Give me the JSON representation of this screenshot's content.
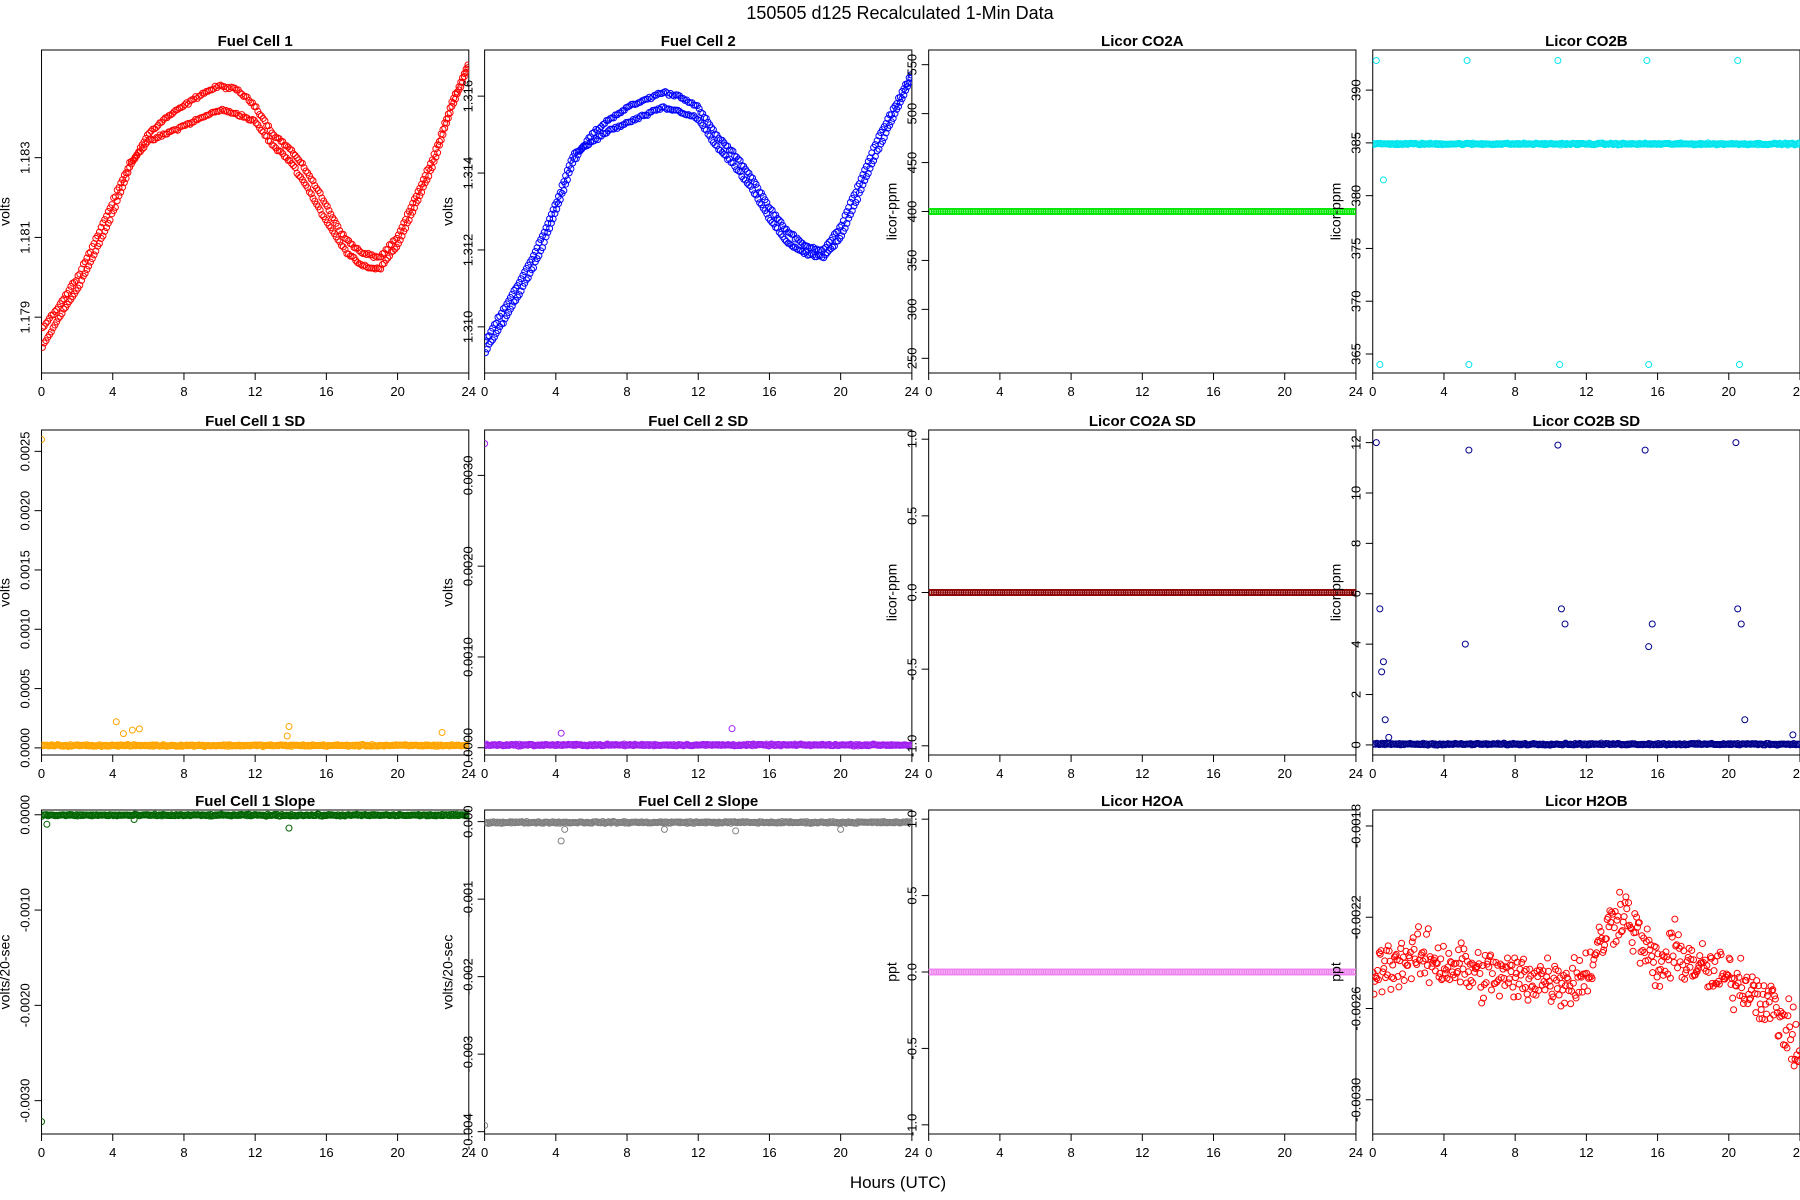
{
  "figure": {
    "title": "150505   d125   Recalculated 1-Min Data",
    "xlabel": "Hours (UTC)"
  },
  "chart_data": [
    {
      "type": "scatter",
      "title": "Fuel Cell 1",
      "ylabel": "volts",
      "color": "#ff0000",
      "xlim": [
        0,
        24
      ],
      "ylim": [
        1.1776,
        1.1857
      ],
      "xticks": [
        0,
        4,
        8,
        12,
        16,
        20,
        24
      ],
      "yticks": [
        1.179,
        1.181,
        1.183
      ],
      "ytick_labels": [
        "1.179",
        "1.181",
        "1.183"
      ],
      "series": [
        {
          "name": "",
          "x": [
            0,
            1,
            2,
            3,
            4,
            5,
            6,
            7,
            8,
            9,
            10,
            11,
            12,
            13,
            14,
            15,
            16,
            17,
            18,
            19,
            20,
            21,
            22,
            23,
            24
          ],
          "y": [
            1.1782,
            1.179,
            1.1797,
            1.1806,
            1.1816,
            1.1828,
            1.1836,
            1.184,
            1.1843,
            1.1846,
            1.1848,
            1.1847,
            1.1843,
            1.1836,
            1.1832,
            1.1826,
            1.1818,
            1.181,
            1.1806,
            1.1805,
            1.181,
            1.182,
            1.183,
            1.1843,
            1.1854
          ]
        },
        {
          "name": "",
          "x": [
            0,
            1,
            2,
            3,
            4,
            5,
            6,
            7,
            8,
            9,
            10,
            11,
            12,
            13,
            14,
            15,
            16,
            17,
            18,
            19,
            20,
            21,
            22,
            23,
            24
          ],
          "y": [
            1.1787,
            1.1793,
            1.18,
            1.1809,
            1.1819,
            1.1829,
            1.1834,
            1.1836,
            1.1838,
            1.184,
            1.1842,
            1.1841,
            1.1839,
            1.1833,
            1.1829,
            1.1822,
            1.1814,
            1.1807,
            1.1803,
            1.1802,
            1.1808,
            1.1818,
            1.1828,
            1.1842,
            1.1853
          ]
        }
      ]
    },
    {
      "type": "scatter",
      "title": "Fuel Cell 2",
      "ylabel": "volts",
      "color": "#0000ff",
      "xlim": [
        0,
        24
      ],
      "ylim": [
        1.3088,
        1.3172
      ],
      "xticks": [
        0,
        4,
        8,
        12,
        16,
        20,
        24
      ],
      "yticks": [
        1.31,
        1.312,
        1.314,
        1.316
      ],
      "ytick_labels": [
        "1.310",
        "1.312",
        "1.314",
        "1.316"
      ],
      "series": [
        {
          "name": "",
          "x": [
            0,
            1,
            2,
            3,
            4,
            5,
            6,
            7,
            8,
            9,
            10,
            11,
            12,
            13,
            14,
            15,
            16,
            17,
            18,
            19,
            20,
            21,
            22,
            23,
            24
          ],
          "y": [
            1.3093,
            1.3101,
            1.3109,
            1.3118,
            1.313,
            1.3143,
            1.315,
            1.3154,
            1.3157,
            1.3159,
            1.3161,
            1.316,
            1.3157,
            1.315,
            1.3145,
            1.3139,
            1.3131,
            1.3125,
            1.3121,
            1.312,
            1.3126,
            1.3137,
            1.3148,
            1.3157,
            1.3166
          ]
        },
        {
          "name": "",
          "x": [
            0,
            1,
            2,
            3,
            4,
            5,
            6,
            7,
            8,
            9,
            10,
            11,
            12,
            13,
            14,
            15,
            16,
            17,
            18,
            19,
            20,
            21,
            22,
            23,
            24
          ],
          "y": [
            1.3096,
            1.3104,
            1.3112,
            1.3121,
            1.3132,
            1.3145,
            1.3148,
            1.3151,
            1.3153,
            1.3155,
            1.3157,
            1.3156,
            1.3154,
            1.3147,
            1.3142,
            1.3136,
            1.3128,
            1.3122,
            1.3119,
            1.3118,
            1.3123,
            1.3134,
            1.3145,
            1.3155,
            1.3165
          ]
        }
      ]
    },
    {
      "type": "scatter",
      "title": "Licor CO2A",
      "ylabel": "licor-ppm",
      "color": "#00e600",
      "xlim": [
        0,
        24
      ],
      "ylim": [
        235,
        565
      ],
      "xticks": [
        0,
        4,
        8,
        12,
        16,
        20,
        24
      ],
      "yticks": [
        250,
        300,
        350,
        400,
        450,
        500,
        550
      ],
      "ytick_labels": [
        "250",
        "300",
        "350",
        "400",
        "450",
        "500",
        "550"
      ],
      "series": [
        {
          "name": "",
          "x": [
            0,
            24
          ],
          "y": [
            400,
            400
          ]
        }
      ]
    },
    {
      "type": "scatter",
      "title": "Licor CO2B",
      "ylabel": "licor-ppm",
      "color": "#00e5ee",
      "xlim": [
        0,
        24
      ],
      "ylim": [
        363.2,
        393.8
      ],
      "xticks": [
        0,
        4,
        8,
        12,
        16,
        20,
        24
      ],
      "yticks": [
        365,
        370,
        375,
        380,
        385,
        390
      ],
      "ytick_labels": [
        "365",
        "370",
        "375",
        "380",
        "385",
        "390"
      ],
      "series": [
        {
          "name": "",
          "x": [
            0.2,
            0.4,
            0.6,
            5.3,
            5.4,
            10.4,
            10.5,
            15.4,
            15.5,
            20.5,
            20.6
          ],
          "y": [
            392.8,
            364,
            381.5,
            392.8,
            364,
            392.8,
            364,
            392.8,
            364,
            392.8,
            364
          ]
        }
      ],
      "baseline": 384.9
    },
    {
      "type": "scatter",
      "title": "Fuel Cell 1 SD",
      "ylabel": "volts",
      "color": "#ffa500",
      "xlim": [
        0,
        24
      ],
      "ylim": [
        -6e-05,
        0.00268
      ],
      "xticks": [
        0,
        4,
        8,
        12,
        16,
        20,
        24
      ],
      "yticks": [
        0,
        0.0005,
        0.001,
        0.0015,
        0.002,
        0.0025
      ],
      "ytick_labels": [
        "0.0000",
        "0.0005",
        "0.0010",
        "0.0015",
        "0.0020",
        "0.0025"
      ],
      "series": [
        {
          "name": "",
          "x": [
            0,
            4.2,
            4.6,
            5.1,
            5.5,
            13.9,
            13.8,
            22.5
          ],
          "y": [
            0.0026,
            0.00022,
            0.00012,
            0.00015,
            0.00016,
            0.00018,
            0.0001,
            0.00013
          ]
        }
      ],
      "baseline": 2e-05
    },
    {
      "type": "scatter",
      "title": "Fuel Cell 2 SD",
      "ylabel": "volts",
      "color": "#a020f0",
      "xlim": [
        0,
        24
      ],
      "ylim": [
        -8e-05,
        0.0035
      ],
      "xticks": [
        0,
        4,
        8,
        12,
        16,
        20,
        24
      ],
      "yticks": [
        0,
        0.001,
        0.002,
        0.003
      ],
      "ytick_labels": [
        "0.0000",
        "0.0010",
        "0.0020",
        "0.0030"
      ],
      "series": [
        {
          "name": "",
          "x": [
            0,
            4.3,
            13.9
          ],
          "y": [
            0.00335,
            0.00016,
            0.00021
          ]
        }
      ],
      "baseline": 3e-05
    },
    {
      "type": "scatter",
      "title": "Licor CO2A SD",
      "ylabel": "licor-ppm",
      "color": "#8b0000",
      "xlim": [
        0,
        24
      ],
      "ylim": [
        -1.06,
        1.06
      ],
      "xticks": [
        0,
        4,
        8,
        12,
        16,
        20,
        24
      ],
      "yticks": [
        -1,
        -0.5,
        0,
        0.5,
        1
      ],
      "ytick_labels": [
        "-1.0",
        "-0.5",
        "0.0",
        "0.5",
        "1.0"
      ],
      "series": [
        {
          "name": "",
          "x": [
            0,
            24
          ],
          "y": [
            0,
            0
          ]
        }
      ]
    },
    {
      "type": "scatter",
      "title": "Licor CO2B SD",
      "ylabel": "licor-ppm",
      "color": "#00008b",
      "xlim": [
        0,
        24
      ],
      "ylim": [
        -0.4,
        12.5
      ],
      "xticks": [
        0,
        4,
        8,
        12,
        16,
        20,
        24
      ],
      "yticks": [
        0,
        2,
        4,
        6,
        8,
        10,
        12
      ],
      "ytick_labels": [
        "0",
        "2",
        "4",
        "6",
        "8",
        "10",
        "12"
      ],
      "series": [
        {
          "name": "",
          "x": [
            0.2,
            0.4,
            0.5,
            0.6,
            0.7,
            0.9,
            5.2,
            5.4,
            10.4,
            10.6,
            10.8,
            15.3,
            15.5,
            15.7,
            20.4,
            20.5,
            20.7,
            20.9,
            23.6
          ],
          "y": [
            12,
            5.4,
            2.9,
            3.3,
            1.0,
            0.3,
            4.0,
            11.7,
            11.9,
            5.4,
            4.8,
            11.7,
            3.9,
            4.8,
            12,
            5.4,
            4.8,
            1.0,
            0.4
          ]
        }
      ],
      "baseline": 0.03
    },
    {
      "type": "scatter",
      "title": "Fuel Cell 1 Slope",
      "ylabel": "volts/20-sec",
      "color": "#006400",
      "xlim": [
        0,
        24
      ],
      "ylim": [
        -0.00335,
        5e-05
      ],
      "xticks": [
        0,
        4,
        8,
        12,
        16,
        20,
        24
      ],
      "yticks": [
        -0.003,
        -0.002,
        -0.001,
        0
      ],
      "ytick_labels": [
        "-0.0030",
        "-0.0020",
        "-0.0010",
        "0.0000"
      ],
      "series": [
        {
          "name": "",
          "x": [
            0,
            4.3,
            0.3,
            5.2,
            13.9
          ],
          "y": [
            -0.00322,
            0.0001,
            -0.0001,
            -5e-05,
            -0.00014
          ]
        }
      ],
      "baseline": -5e-06
    },
    {
      "type": "scatter",
      "title": "Fuel Cell 2 Slope",
      "ylabel": "volts/20-sec",
      "color": "#808080",
      "xlim": [
        0,
        24
      ],
      "ylim": [
        -0.00403,
        0.00015
      ],
      "xticks": [
        0,
        4,
        8,
        12,
        16,
        20,
        24
      ],
      "yticks": [
        -0.004,
        -0.003,
        -0.002,
        -0.001,
        0
      ],
      "ytick_labels": [
        "-0.004",
        "-0.003",
        "-0.002",
        "-0.001",
        "0.000"
      ],
      "series": [
        {
          "name": "",
          "x": [
            0,
            4.3,
            4.5,
            10.1,
            14.1,
            20
          ],
          "y": [
            -0.00392,
            -0.00025,
            -0.0001,
            -0.0001,
            -0.00012,
            -0.0001
          ]
        }
      ],
      "baseline": -1e-05
    },
    {
      "type": "scatter",
      "title": "Licor H2OA",
      "ylabel": "ppt",
      "color": "#ee82ee",
      "xlim": [
        0,
        24
      ],
      "ylim": [
        -1.06,
        1.06
      ],
      "xticks": [
        0,
        4,
        8,
        12,
        16,
        20,
        24
      ],
      "yticks": [
        -1,
        -0.5,
        0,
        0.5,
        1
      ],
      "ytick_labels": [
        "-1.0",
        "-0.5",
        "0.0",
        "0.5",
        "1.0"
      ],
      "series": [
        {
          "name": "",
          "x": [
            0,
            24
          ],
          "y": [
            0,
            0
          ]
        }
      ]
    },
    {
      "type": "scatter",
      "title": "Licor H2OB",
      "ylabel": "ppt",
      "color": "#ff0000",
      "xlim": [
        0,
        24
      ],
      "ylim": [
        -0.00315,
        -0.00173
      ],
      "xticks": [
        0,
        4,
        8,
        12,
        16,
        20,
        24
      ],
      "yticks": [
        -0.003,
        -0.0026,
        -0.0022,
        -0.0018
      ],
      "ytick_labels": [
        "-0.0030",
        "-0.0026",
        "-0.0022",
        "-0.0018"
      ],
      "series": [
        {
          "name": "",
          "x": [
            0,
            1,
            2,
            3,
            4,
            5,
            6,
            7,
            8,
            9,
            10,
            11,
            12,
            13,
            14,
            15,
            16,
            17,
            18,
            19,
            20,
            21,
            22,
            23,
            24
          ],
          "y": [
            -0.00245,
            -0.0024,
            -0.00238,
            -0.00238,
            -0.0024,
            -0.00242,
            -0.00245,
            -0.00245,
            -0.00247,
            -0.00246,
            -0.00247,
            -0.00248,
            -0.00245,
            -0.00228,
            -0.00215,
            -0.0023,
            -0.00243,
            -0.00235,
            -0.0024,
            -0.00245,
            -0.00247,
            -0.00249,
            -0.00255,
            -0.00265,
            -0.0028
          ]
        }
      ]
    }
  ]
}
